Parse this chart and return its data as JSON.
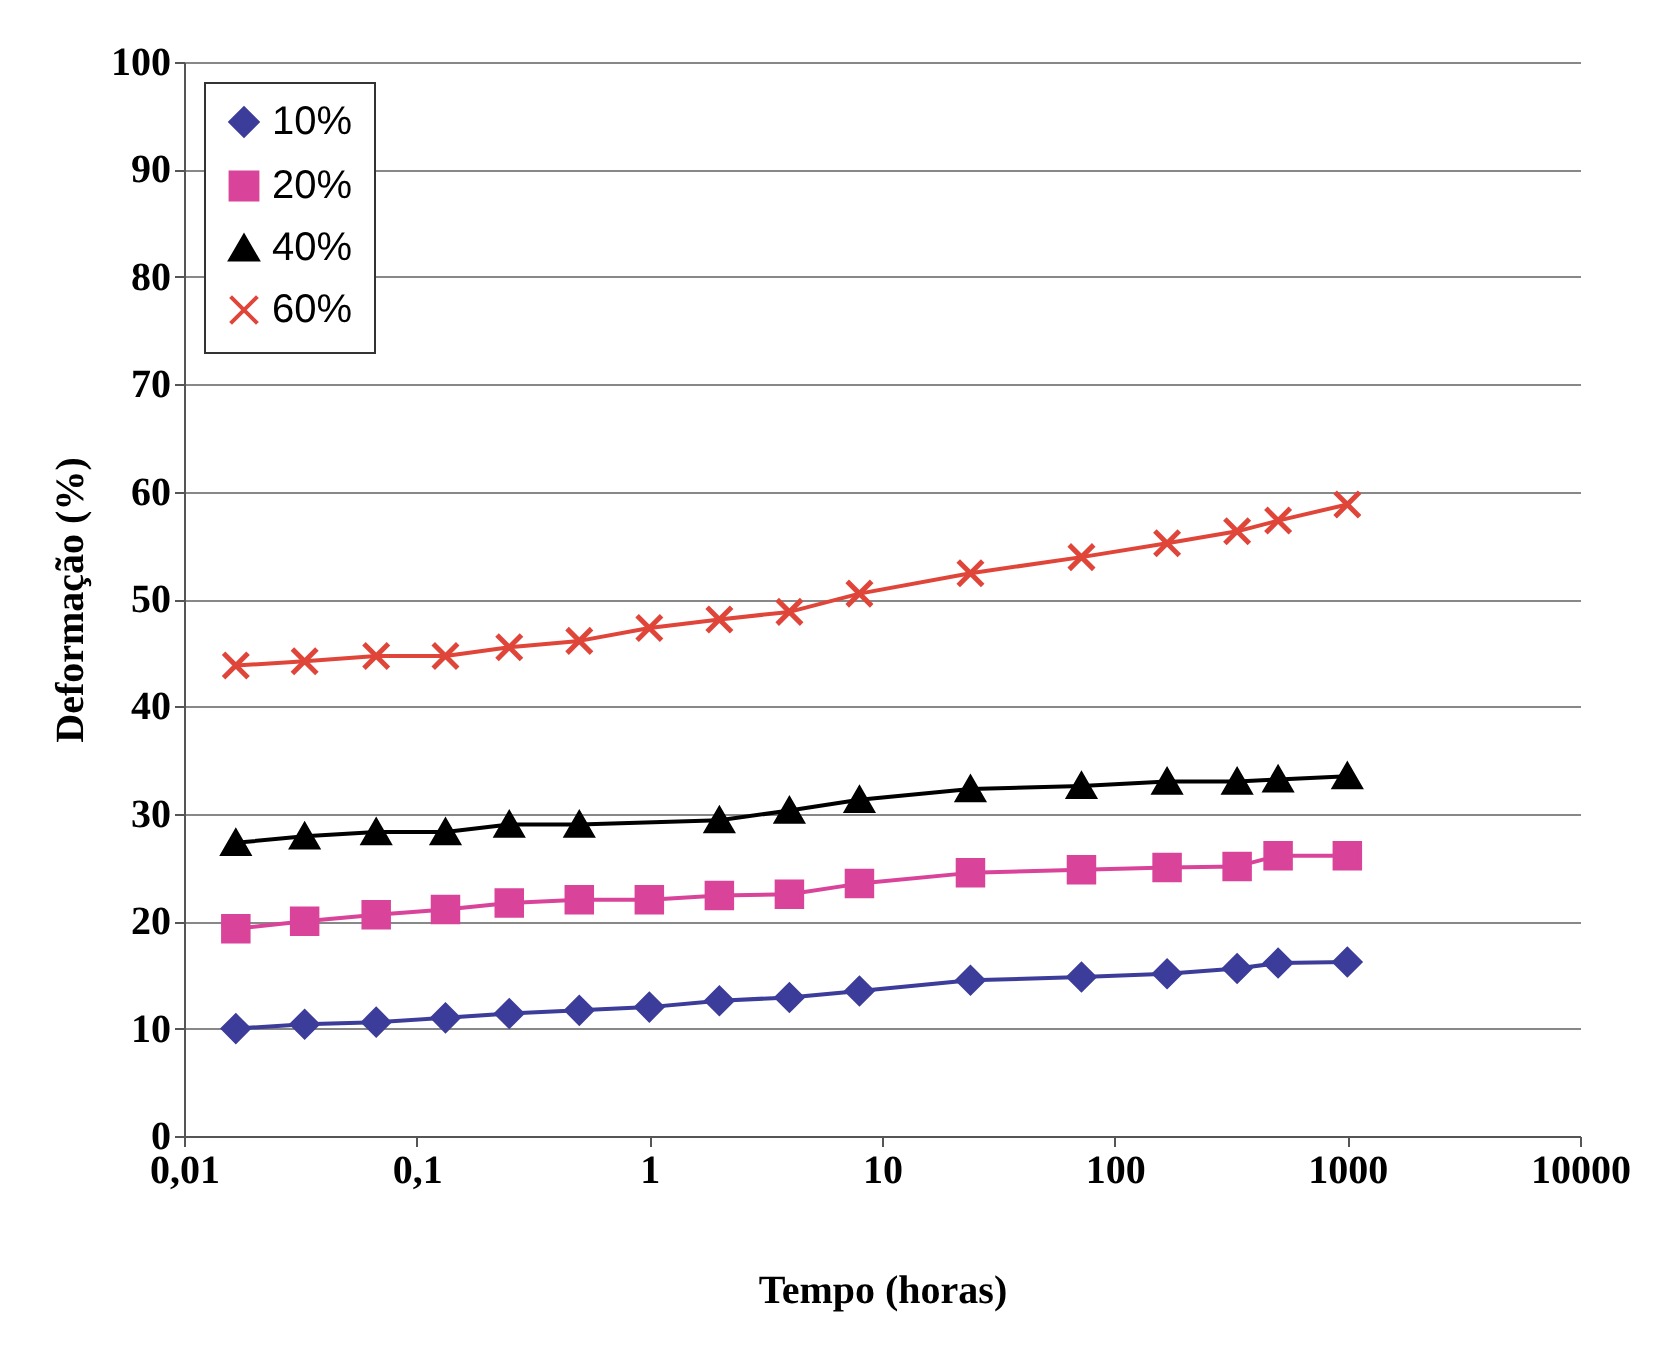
{
  "chart_data": {
    "type": "line",
    "xlabel": "Tempo (horas)",
    "ylabel": "Deformação (%)",
    "x": [
      0.0167,
      0.033,
      0.067,
      0.133,
      0.25,
      0.5,
      1,
      2,
      4,
      8,
      24,
      72,
      168,
      336,
      504,
      1000
    ],
    "series": [
      {
        "name": "10%",
        "color": "#3c3c9a",
        "marker": "diamond",
        "values": [
          10.0,
          10.4,
          10.6,
          11.0,
          11.4,
          11.7,
          12.0,
          12.6,
          12.9,
          13.5,
          14.5,
          14.8,
          15.1,
          15.6,
          16.1,
          16.2
        ]
      },
      {
        "name": "20%",
        "color": "#d9449a",
        "marker": "square",
        "values": [
          19.3,
          20.0,
          20.6,
          21.1,
          21.7,
          22.0,
          22.0,
          22.4,
          22.5,
          23.5,
          24.5,
          24.8,
          25.0,
          25.1,
          26.1,
          26.1
        ]
      },
      {
        "name": "40%",
        "color": "#000000",
        "marker": "triangle",
        "values": [
          27.3,
          27.9,
          28.3,
          28.3,
          29.0,
          29.0,
          null,
          29.4,
          30.3,
          31.3,
          32.3,
          32.6,
          33.0,
          33.0,
          33.2,
          33.5
        ]
      },
      {
        "name": "60%",
        "color": "#e0453a",
        "marker": "cross",
        "values": [
          43.8,
          44.2,
          44.7,
          44.7,
          45.5,
          46.1,
          47.3,
          48.1,
          48.8,
          50.5,
          52.4,
          53.9,
          55.2,
          56.3,
          57.3,
          58.8
        ]
      }
    ],
    "log": "x",
    "xlim": [
      0.01,
      10000
    ],
    "xticks": [
      {
        "value": 0.01,
        "label": "0,01"
      },
      {
        "value": 0.1,
        "label": "0,1"
      },
      1,
      10,
      100,
      1000,
      10000
    ],
    "ylim": [
      0,
      100
    ],
    "yticks": [
      0,
      10,
      20,
      30,
      40,
      50,
      60,
      70,
      80,
      90,
      100
    ],
    "grid": "y",
    "legend": "top left"
  }
}
